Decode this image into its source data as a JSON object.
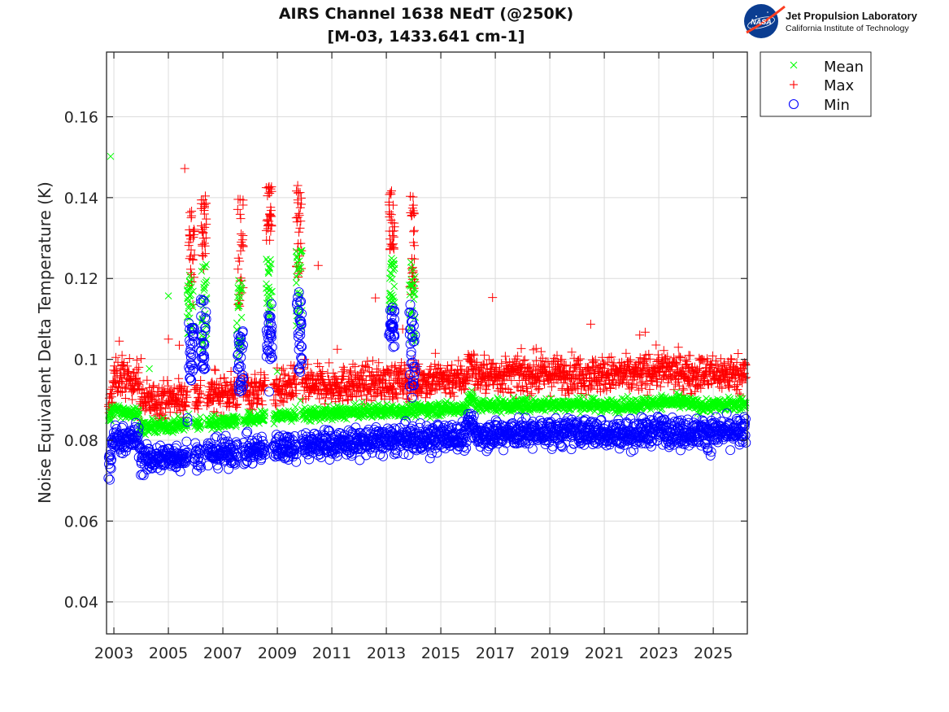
{
  "logo": {
    "org_badge": "NASA",
    "title": "Jet Propulsion Laboratory",
    "subtitle": "California Institute of Technology"
  },
  "chart_data": {
    "type": "scatter",
    "title": "AIRS Channel 1638 NEdT (@250K)",
    "subtitle": "[M-03, 1433.641 cm-1]",
    "xlabel": "",
    "ylabel": "Noise Equivalent Delta Temperature (K)",
    "xlim": [
      2002.73,
      2026.25
    ],
    "ylim": [
      0.0321,
      0.176
    ],
    "xticks": [
      2003,
      2005,
      2007,
      2009,
      2011,
      2013,
      2015,
      2017,
      2019,
      2021,
      2023,
      2025
    ],
    "xtick_labels": [
      "2003",
      "2005",
      "2007",
      "2009",
      "2011",
      "2013",
      "2015",
      "2017",
      "2019",
      "2021",
      "2023",
      "2025"
    ],
    "yticks": [
      0.04,
      0.06,
      0.08,
      0.1,
      0.12,
      0.14,
      0.16
    ],
    "ytick_labels": [
      "0.04",
      "0.06",
      "0.08",
      "0.1",
      "0.12",
      "0.14",
      "0.16"
    ],
    "grid": true,
    "legend_position": "outside-top-right",
    "series": [
      {
        "name": "Mean",
        "marker": "x",
        "color": "#00ff00",
        "trend": [
          [
            2002.8,
            0.0855
          ],
          [
            2003.0,
            0.0875
          ],
          [
            2003.9,
            0.0865
          ],
          [
            2004.0,
            0.083
          ],
          [
            2006.0,
            0.084
          ],
          [
            2008.5,
            0.0855
          ],
          [
            2009.0,
            0.086
          ],
          [
            2012.0,
            0.087
          ],
          [
            2015.9,
            0.088
          ],
          [
            2016.1,
            0.091
          ],
          [
            2016.3,
            0.0885
          ],
          [
            2020.0,
            0.0888
          ],
          [
            2022.0,
            0.0885
          ],
          [
            2023.0,
            0.0895
          ],
          [
            2024.0,
            0.0893
          ],
          [
            2024.5,
            0.0885
          ],
          [
            2026.2,
            0.089
          ]
        ],
        "spread": 0.0008,
        "spikes": [
          [
            2005.8,
            0.106,
            0.121
          ],
          [
            2006.3,
            0.102,
            0.124
          ],
          [
            2007.6,
            0.1,
            0.12
          ],
          [
            2008.7,
            0.109,
            0.126
          ],
          [
            2009.8,
            0.107,
            0.127
          ],
          [
            2013.2,
            0.112,
            0.125
          ],
          [
            2013.95,
            0.104,
            0.125
          ]
        ],
        "outliers": [
          [
            2002.88,
            0.1502
          ],
          [
            2004.3,
            0.0977
          ],
          [
            2005.0,
            0.1157
          ],
          [
            2009.0,
            0.097
          ],
          [
            2009.85,
            0.0898
          ],
          [
            2020.0,
            0.0905
          ],
          [
            2005.75,
            0.0865
          ]
        ]
      },
      {
        "name": "Max",
        "marker": "+",
        "color": "#ff0000",
        "trend": [
          [
            2002.8,
            0.086
          ],
          [
            2003.0,
            0.0955
          ],
          [
            2003.9,
            0.095
          ],
          [
            2004.0,
            0.0895
          ],
          [
            2006.0,
            0.091
          ],
          [
            2008.5,
            0.0925
          ],
          [
            2009.0,
            0.093
          ],
          [
            2012.0,
            0.094
          ],
          [
            2015.9,
            0.0955
          ],
          [
            2016.1,
            0.0995
          ],
          [
            2016.3,
            0.096
          ],
          [
            2020.0,
            0.0965
          ],
          [
            2022.0,
            0.096
          ],
          [
            2023.0,
            0.0975
          ],
          [
            2024.0,
            0.0965
          ],
          [
            2026.2,
            0.0965
          ]
        ],
        "spread": 0.0022,
        "spikes": [
          [
            2005.85,
            0.118,
            0.138
          ],
          [
            2006.3,
            0.122,
            0.141
          ],
          [
            2007.65,
            0.113,
            0.14
          ],
          [
            2008.7,
            0.129,
            0.143
          ],
          [
            2009.8,
            0.119,
            0.143
          ],
          [
            2013.2,
            0.127,
            0.142
          ],
          [
            2013.95,
            0.116,
            0.142
          ]
        ],
        "outliers": [
          [
            2003.2,
            0.1045
          ],
          [
            2003.3,
            0.101
          ],
          [
            2004.0,
            0.1002
          ],
          [
            2005.0,
            0.105
          ],
          [
            2005.4,
            0.1035
          ],
          [
            2005.6,
            0.1472
          ],
          [
            2005.9,
            0.1135
          ],
          [
            2006.7,
            0.0975
          ],
          [
            2007.3,
            0.097
          ],
          [
            2009.5,
            0.0985
          ],
          [
            2010.0,
            0.1
          ],
          [
            2010.5,
            0.1232
          ],
          [
            2011.2,
            0.1025
          ],
          [
            2012.6,
            0.1152
          ],
          [
            2013.6,
            0.1075
          ],
          [
            2014.8,
            0.1015
          ],
          [
            2016.9,
            0.1153
          ],
          [
            2018.5,
            0.1027
          ],
          [
            2020.5,
            0.1087
          ],
          [
            2022.3,
            0.106
          ],
          [
            2022.5,
            0.1067
          ],
          [
            2023.0,
            0.1
          ],
          [
            2024.1,
            0.101
          ]
        ]
      },
      {
        "name": "Min",
        "marker": "o",
        "color": "#0000ff",
        "trend": [
          [
            2002.8,
            0.072
          ],
          [
            2002.95,
            0.08
          ],
          [
            2003.9,
            0.0805
          ],
          [
            2004.0,
            0.075
          ],
          [
            2006.0,
            0.0765
          ],
          [
            2008.5,
            0.0775
          ],
          [
            2009.0,
            0.0785
          ],
          [
            2012.0,
            0.0795
          ],
          [
            2015.9,
            0.081
          ],
          [
            2016.05,
            0.0845
          ],
          [
            2016.3,
            0.0815
          ],
          [
            2020.0,
            0.082
          ],
          [
            2022.0,
            0.0815
          ],
          [
            2023.0,
            0.0825
          ],
          [
            2024.0,
            0.082
          ],
          [
            2026.2,
            0.082
          ]
        ],
        "spread": 0.0017,
        "spikes": [
          [
            2005.85,
            0.094,
            0.109
          ],
          [
            2006.3,
            0.097,
            0.115
          ],
          [
            2007.65,
            0.092,
            0.107
          ],
          [
            2008.7,
            0.1,
            0.114
          ],
          [
            2009.8,
            0.096,
            0.117
          ],
          [
            2013.2,
            0.103,
            0.113
          ],
          [
            2013.95,
            0.0905,
            0.114
          ]
        ],
        "outliers": [
          [
            2002.85,
            0.0702
          ],
          [
            2002.9,
            0.073
          ],
          [
            2004.4,
            0.073
          ],
          [
            2005.7,
            0.0855
          ],
          [
            2005.7,
            0.0845
          ],
          [
            2007.6,
            0.092
          ],
          [
            2008.7,
            0.092
          ],
          [
            2013.95,
            0.0905
          ],
          [
            2014.6,
            0.0755
          ],
          [
            2017.3,
            0.0775
          ],
          [
            2024.8,
            0.0775
          ],
          [
            2024.9,
            0.0762
          ],
          [
            2023.8,
            0.0775
          ]
        ]
      }
    ]
  }
}
